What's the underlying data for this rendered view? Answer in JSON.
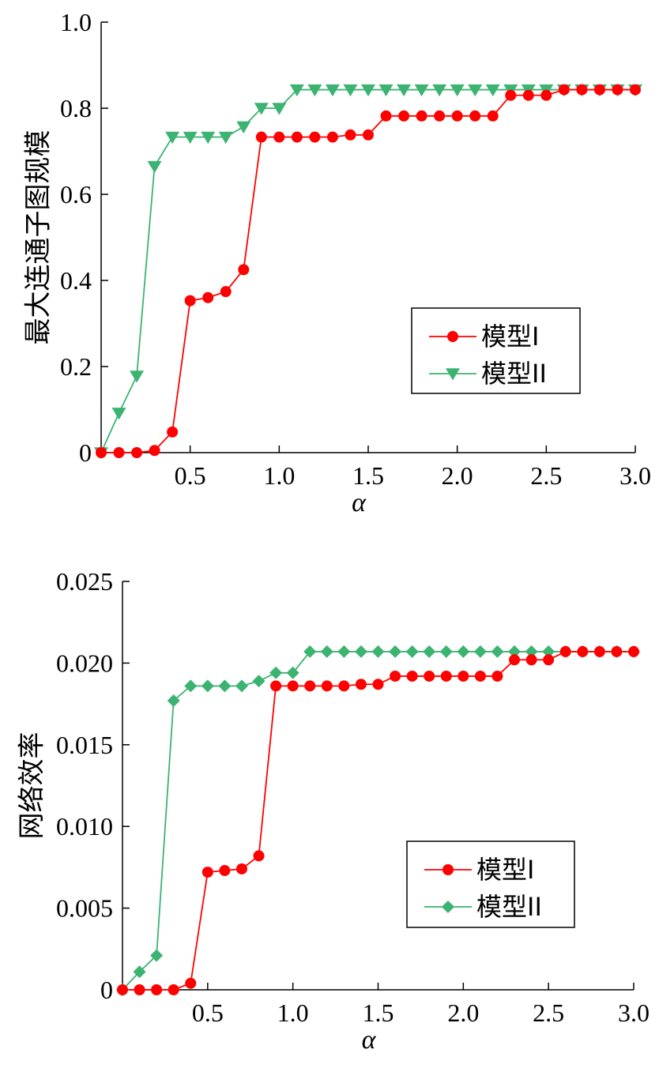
{
  "chart_data": [
    {
      "type": "line",
      "ylabel": "最大连通子图规模",
      "xlabel": "α",
      "xlim": [
        0,
        3.0
      ],
      "ylim": [
        0,
        1.0
      ],
      "x_ticks": [
        "0.5",
        "1.0",
        "1.5",
        "2.0",
        "2.5",
        "3.0"
      ],
      "x_tick_values": [
        0.5,
        1.0,
        1.5,
        2.0,
        2.5,
        3.0
      ],
      "y_ticks": [
        "0",
        "0.2",
        "0.4",
        "0.6",
        "0.8",
        "1.0"
      ],
      "y_tick_values": [
        0,
        0.2,
        0.4,
        0.6,
        0.8,
        1.0
      ],
      "legend_position": "right-middle",
      "x": [
        0.0,
        0.1,
        0.2,
        0.3,
        0.4,
        0.5,
        0.6,
        0.7,
        0.8,
        0.9,
        1.0,
        1.1,
        1.2,
        1.3,
        1.4,
        1.5,
        1.6,
        1.7,
        1.8,
        1.9,
        2.0,
        2.1,
        2.2,
        2.3,
        2.4,
        2.5,
        2.6,
        2.7,
        2.8,
        2.9,
        3.0
      ],
      "series": [
        {
          "name": "模型I",
          "color": "#ff0000",
          "marker": "circle",
          "values": [
            0.0,
            0.0,
            0.0,
            0.005,
            0.048,
            0.353,
            0.36,
            0.374,
            0.425,
            0.733,
            0.733,
            0.733,
            0.733,
            0.733,
            0.738,
            0.738,
            0.782,
            0.782,
            0.782,
            0.782,
            0.782,
            0.782,
            0.782,
            0.83,
            0.83,
            0.83,
            0.843,
            0.843,
            0.843,
            0.843,
            0.843
          ]
        },
        {
          "name": "模型II",
          "color": "#3cb371",
          "marker": "triangle-down",
          "values": [
            0.0,
            0.092,
            0.178,
            0.665,
            0.733,
            0.733,
            0.733,
            0.733,
            0.757,
            0.8,
            0.8,
            0.843,
            0.843,
            0.843,
            0.843,
            0.843,
            0.843,
            0.843,
            0.843,
            0.843,
            0.843,
            0.843,
            0.843,
            0.843,
            0.843,
            0.843,
            0.843,
            0.843,
            0.843,
            0.843,
            0.843
          ]
        }
      ]
    },
    {
      "type": "line",
      "ylabel": "网络效率",
      "xlabel": "α",
      "xlim": [
        0,
        3.0
      ],
      "ylim": [
        0,
        0.025
      ],
      "x_ticks": [
        "0.5",
        "1.0",
        "1.5",
        "2.0",
        "2.5",
        "3.0"
      ],
      "x_tick_values": [
        0.5,
        1.0,
        1.5,
        2.0,
        2.5,
        3.0
      ],
      "y_ticks": [
        "0",
        "0.005",
        "0.010",
        "0.015",
        "0.020",
        "0.025"
      ],
      "y_tick_values": [
        0,
        0.005,
        0.01,
        0.015,
        0.02,
        0.025
      ],
      "legend_position": "right-lower",
      "x": [
        0.0,
        0.1,
        0.2,
        0.3,
        0.4,
        0.5,
        0.6,
        0.7,
        0.8,
        0.9,
        1.0,
        1.1,
        1.2,
        1.3,
        1.4,
        1.5,
        1.6,
        1.7,
        1.8,
        1.9,
        2.0,
        2.1,
        2.2,
        2.3,
        2.4,
        2.5,
        2.6,
        2.7,
        2.8,
        2.9,
        3.0
      ],
      "series": [
        {
          "name": "模型I",
          "color": "#ff0000",
          "marker": "circle",
          "values": [
            0.0,
            0.0,
            0.0,
            0.0,
            0.0004,
            0.0072,
            0.0073,
            0.0074,
            0.0082,
            0.0186,
            0.0186,
            0.0186,
            0.0186,
            0.0186,
            0.0187,
            0.0187,
            0.0192,
            0.0192,
            0.0192,
            0.0192,
            0.0192,
            0.0192,
            0.0192,
            0.0202,
            0.0202,
            0.0202,
            0.0207,
            0.0207,
            0.0207,
            0.0207,
            0.0207
          ]
        },
        {
          "name": "模型II",
          "color": "#3cb371",
          "marker": "diamond",
          "values": [
            0.0,
            0.0011,
            0.0021,
            0.0177,
            0.0186,
            0.0186,
            0.0186,
            0.0186,
            0.0189,
            0.0194,
            0.0194,
            0.0207,
            0.0207,
            0.0207,
            0.0207,
            0.0207,
            0.0207,
            0.0207,
            0.0207,
            0.0207,
            0.0207,
            0.0207,
            0.0207,
            0.0207,
            0.0207,
            0.0207,
            0.0207,
            0.0207,
            0.0207,
            0.0207,
            0.0207
          ]
        }
      ]
    }
  ]
}
